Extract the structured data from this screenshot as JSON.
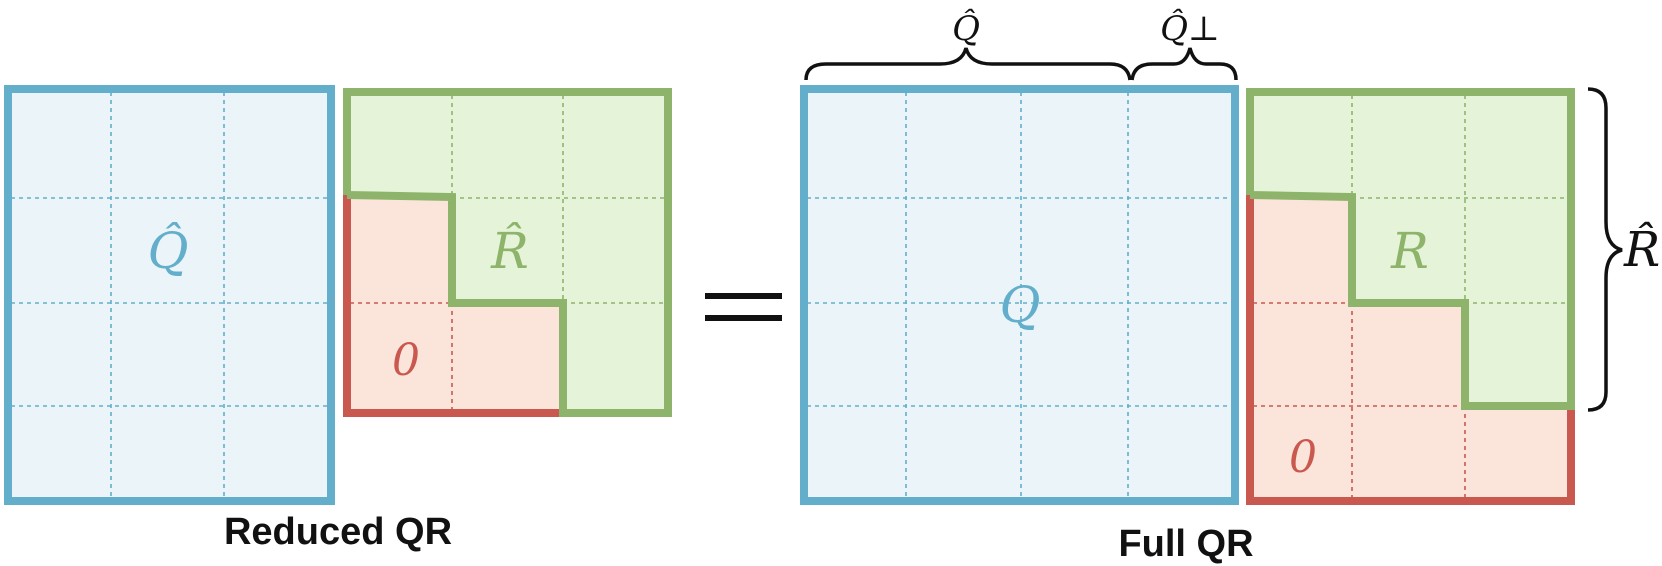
{
  "colors": {
    "blue": "#62aecb",
    "blue_fill": "#ebf5f9",
    "green": "#8db46a",
    "green_fill": "#e5f4d9",
    "red": "#c9584f",
    "red_fill": "#fbe4da",
    "ink": "#111111"
  },
  "reduced": {
    "caption": "Reduced QR",
    "q_label": "Q̂",
    "r_label": "R̂",
    "zero_label": "0"
  },
  "equals": "=",
  "full": {
    "caption": "Full QR",
    "q_label": "Q",
    "r_label": "R",
    "zero_label": "0",
    "brace_q": "Q̂",
    "brace_q_perp": "Q̂⊥",
    "brace_r": "R̂"
  }
}
